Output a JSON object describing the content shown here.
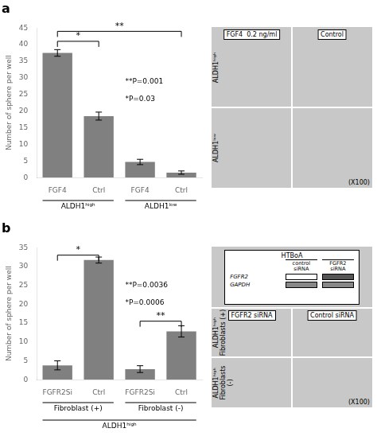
{
  "chart_data": [
    {
      "type": "bar",
      "title": "a",
      "categories": [
        "FGF4",
        "Ctrl",
        "FGF4",
        "Ctrl"
      ],
      "values": [
        37.5,
        18.5,
        4.7,
        1.5
      ],
      "errors": [
        1.0,
        1.2,
        0.8,
        0.5
      ],
      "color": "#808080",
      "ylabel": "Number of sphere per well",
      "ylim": [
        0,
        45
      ],
      "yticks": [
        0,
        5,
        10,
        15,
        20,
        25,
        30,
        35,
        40,
        45
      ],
      "grid": false,
      "groups": [
        [
          "ALDH1ʰⁱᵍʰ",
          "ALDH1ʰⁱᵍʰ",
          "ALDH1ˡᵒʷ",
          "ALDH1ˡᵒʷ"
        ]
      ],
      "significance": [
        {
          "between": [
            0,
            1
          ],
          "y": 41,
          "label": "*"
        },
        {
          "between": [
            0,
            3
          ],
          "y": 44,
          "label": "**"
        }
      ],
      "annotations": [
        {
          "text": "**P=0.001\n\n*P=0.03",
          "y": 30
        }
      ],
      "image_panel": {
        "color": "#c8c8c8",
        "columns": [
          "FGF4  0.2 ng/ml",
          "Control"
        ],
        "rows": [
          "ALDH1ʰⁱᵍʰ",
          "ALDH1ˡᵒʷ"
        ],
        "magnification": "(X100)"
      }
    },
    {
      "type": "bar",
      "title": "b",
      "categories": [
        "FGFR2Si",
        "Ctrl",
        "FGFR2Si",
        "Ctrl"
      ],
      "values": [
        3.8,
        31.7,
        2.8,
        12.8
      ],
      "errors": [
        1.2,
        0.8,
        0.9,
        1.5
      ],
      "color": "#808080",
      "ylabel": "Number of sphere per well",
      "ylim": [
        0,
        35
      ],
      "yticks": [
        0,
        5,
        10,
        15,
        20,
        25,
        30,
        35
      ],
      "grid": false,
      "groups": [
        [
          "Fibroblast (+)",
          "Fibroblast (+)",
          "Fibroblast (-)",
          "Fibroblast (-)"
        ],
        [
          "ALDH1ʰⁱᵍʰ",
          "ALDH1ʰⁱᵍʰ",
          "ALDH1ʰⁱᵍʰ",
          "ALDH1ʰⁱᵍʰ"
        ]
      ],
      "significance": [
        {
          "between": [
            0,
            1
          ],
          "y": 33,
          "label": "*"
        },
        {
          "between": [
            2,
            3
          ],
          "y": 15.5,
          "label": "**"
        }
      ],
      "annotations": [
        {
          "text": "**P=0.0036\n\n*P=0.0006",
          "y": 26
        }
      ],
      "image_panel": {
        "color": "#c8c8c8",
        "blot": {
          "title": "HTBoA",
          "columns": [
            "control\nsiRNA",
            "FGFR2\nsiRNA"
          ],
          "rows": [
            {
              "name": "FGFR2",
              "bands": [
                "#ffffff",
                "#555555"
              ]
            },
            {
              "name": "GAPDH",
              "bands": [
                "#888888",
                "#888888"
              ]
            }
          ]
        },
        "columns": [
          "FGFR2 siRNA",
          "Control siRNA"
        ],
        "rows": [
          "ALDH1ʰⁱᵍʰ\nFibroblasts (+)",
          "ALDH1ʰⁱᵍʰ\nFibroblasts (-)"
        ],
        "magnification": "(X100)"
      }
    }
  ]
}
